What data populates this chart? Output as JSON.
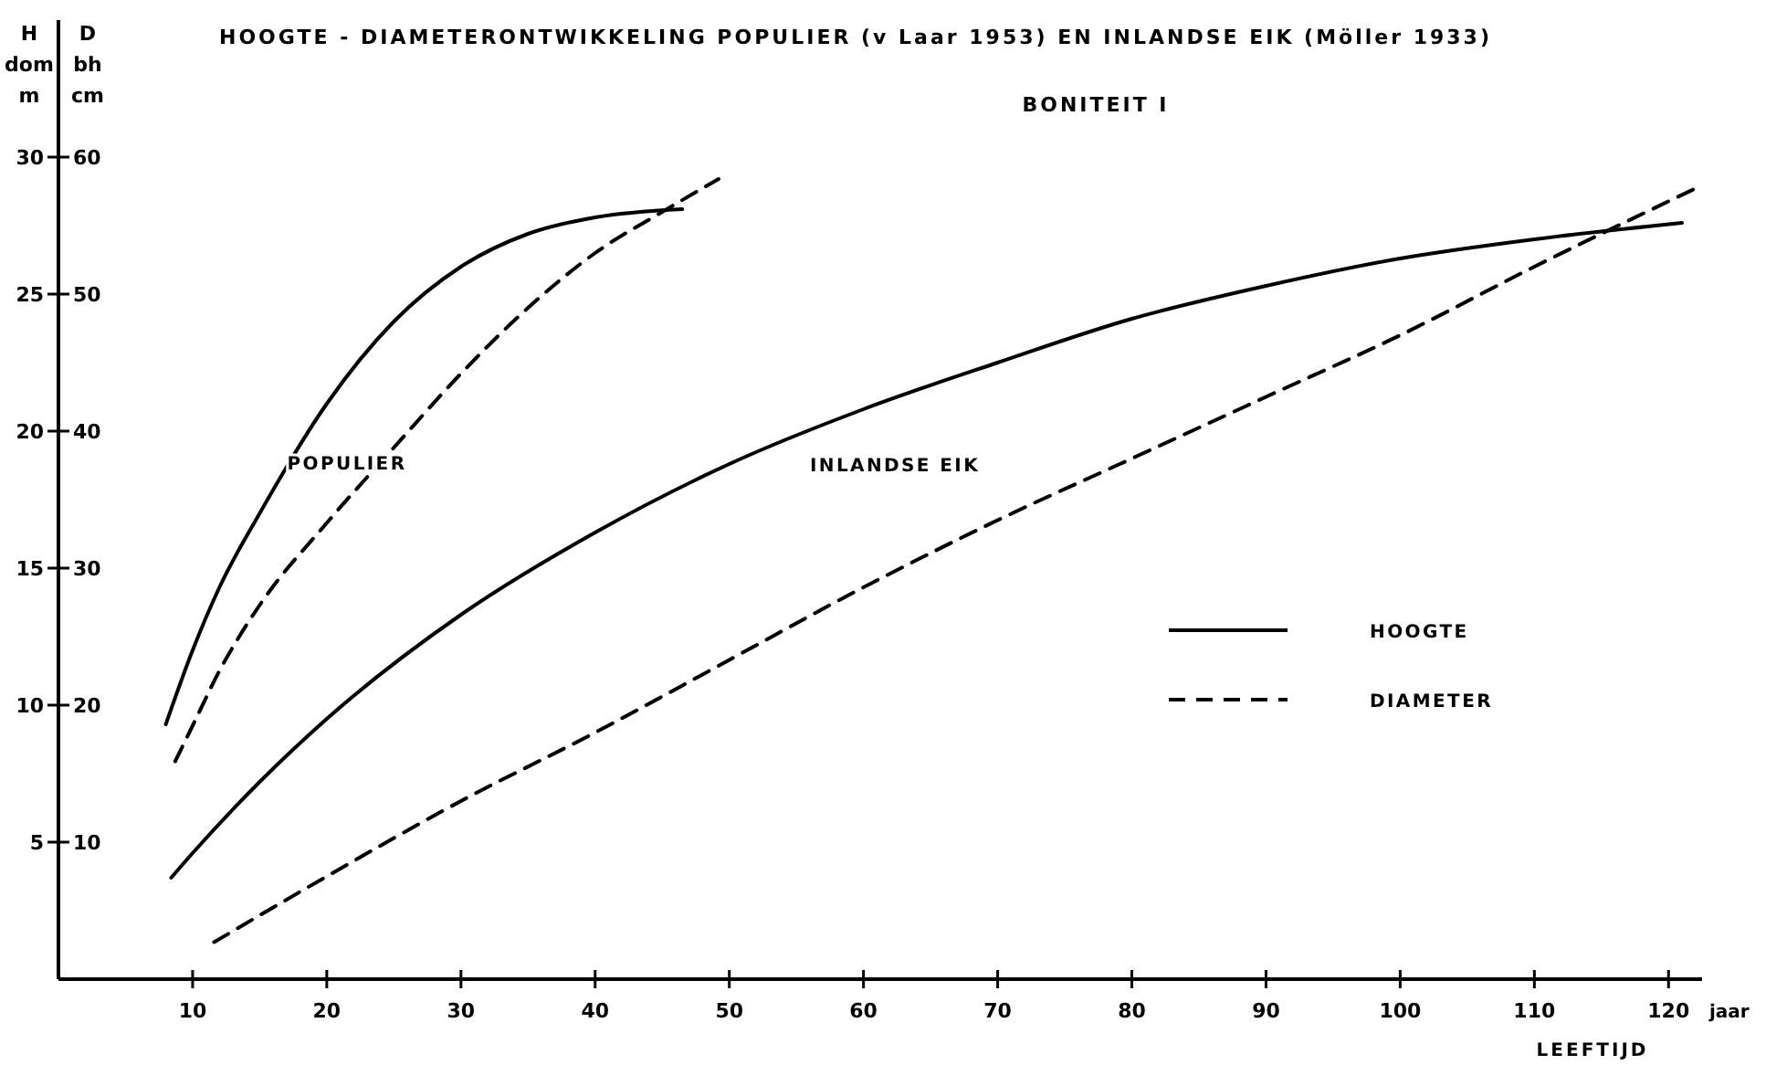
{
  "chart_data": {
    "type": "line",
    "title": "HOOGTE - DIAMETERONTWIKKELING POPULIER (v Laar 1953) EN INLANDSE EIK (Möller 1933)",
    "subtitle": "BONITEIT I",
    "xlabel": "LEEFTIJD",
    "ylabel": "H dom m",
    "y2label": "D bh cm",
    "xlim": [
      0,
      122.5
    ],
    "xticks": [
      10,
      20,
      30,
      40,
      50,
      60,
      70,
      80,
      90,
      100,
      110,
      120
    ],
    "ylim": [
      0,
      35
    ],
    "yticks": [
      5,
      10,
      15,
      20,
      25,
      30
    ],
    "y2lim": [
      0,
      70
    ],
    "y2ticks": [
      10,
      20,
      30,
      40,
      50,
      60
    ],
    "grid": false,
    "marker": "none",
    "annotations": [
      "jaar",
      "POPULIER",
      "INLANDSE EIK",
      "HOOGTE",
      "DIAMETER"
    ],
    "series": [
      {
        "color": "#000000",
        "line_style": "solid",
        "x": [
          8,
          10,
          12,
          15,
          20,
          25,
          30,
          35,
          40,
          46.5
        ],
        "values": [
          9.3,
          12,
          14.3,
          17,
          21,
          24,
          26,
          27.2,
          27.8,
          28.1
        ]
      },
      {
        "color": "#000000",
        "line_style": "dashed",
        "axis": "y2",
        "x": [
          8.7,
          10,
          12,
          15,
          20,
          25,
          30,
          35,
          40,
          45,
          49.2
        ],
        "values": [
          15.9,
          18.5,
          22.5,
          27.3,
          33.3,
          38.8,
          44.2,
          49,
          53,
          56,
          58.4
        ]
      },
      {
        "color": "#000000",
        "line_style": "solid",
        "x": [
          8.4,
          10,
          15,
          20,
          30,
          40,
          50,
          60,
          70,
          80,
          90,
          100,
          110,
          121
        ],
        "values": [
          3.7,
          4.6,
          7.2,
          9.5,
          13.3,
          16.3,
          18.8,
          20.8,
          22.5,
          24.1,
          25.3,
          26.3,
          27,
          27.6
        ]
      },
      {
        "color": "#000000",
        "line_style": "dashed",
        "axis": "y2",
        "x": [
          11.6,
          20,
          30,
          40,
          50,
          60,
          70,
          80,
          90,
          100,
          110,
          122.4
        ],
        "values": [
          2.7,
          7.5,
          13,
          18,
          23.3,
          28.6,
          33.5,
          38,
          42.5,
          47,
          52,
          57.9
        ]
      }
    ]
  }
}
